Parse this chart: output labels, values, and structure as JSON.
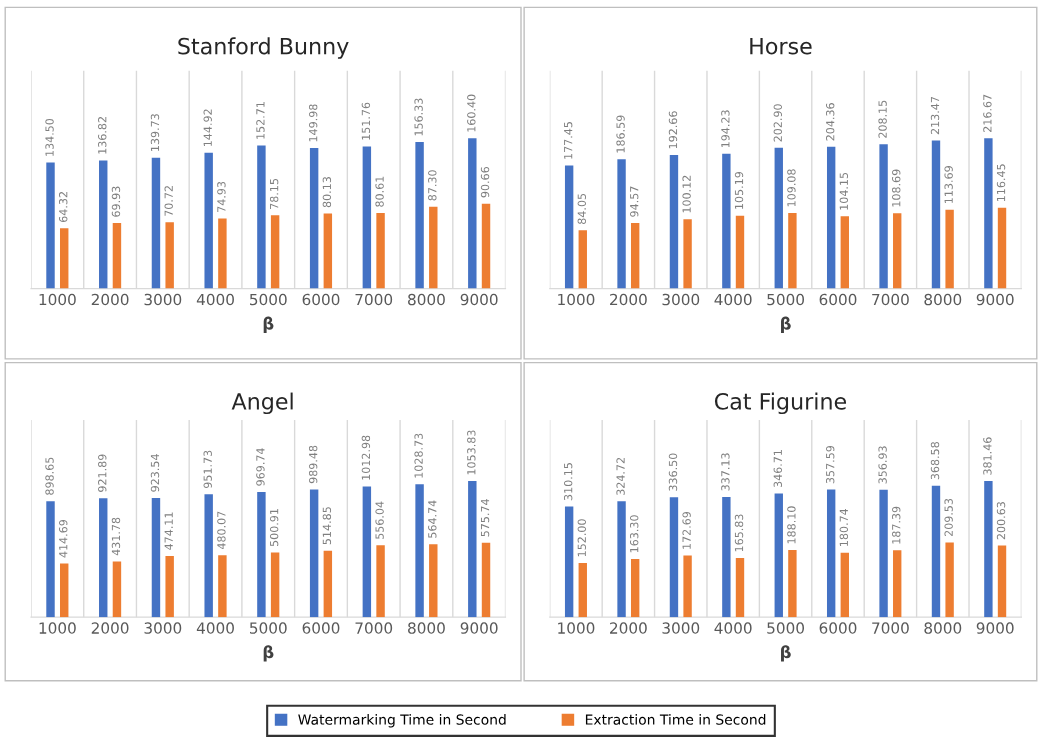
{
  "chart_data": [
    {
      "type": "bar",
      "title": "Stanford Bunny",
      "xlabel": "β",
      "categories": [
        "1000",
        "2000",
        "3000",
        "4000",
        "5000",
        "6000",
        "7000",
        "8000",
        "9000"
      ],
      "grid": "x",
      "legend": "bottom",
      "series": [
        {
          "name": "Watermarking Time in Second",
          "color": "#4472c4",
          "values": [
            134.5,
            136.82,
            139.73,
            144.92,
            152.71,
            149.98,
            151.76,
            156.33,
            160.4
          ],
          "value_labels": [
            "134.50",
            "136.82",
            "139.73",
            "144.92",
            "152.71",
            "149.98",
            "151.76",
            "156.33",
            "160.40"
          ]
        },
        {
          "name": "Extraction Time in Second",
          "color": "#ed7d31",
          "values": [
            64.32,
            69.93,
            70.72,
            74.93,
            78.15,
            80.13,
            80.61,
            87.3,
            90.66
          ],
          "value_labels": [
            "64.32",
            "69.93",
            "70.72",
            "74.93",
            "78.15",
            "80.13",
            "80.61",
            "87.30",
            "90.66"
          ]
        }
      ]
    },
    {
      "type": "bar",
      "title": "Horse",
      "xlabel": "β",
      "categories": [
        "1000",
        "2000",
        "3000",
        "4000",
        "5000",
        "6000",
        "7000",
        "8000",
        "9000"
      ],
      "grid": "x",
      "legend": "bottom",
      "series": [
        {
          "name": "Watermarking Time in Second",
          "color": "#4472c4",
          "values": [
            177.45,
            186.59,
            192.66,
            194.23,
            202.9,
            204.36,
            208.15,
            213.47,
            216.67
          ],
          "value_labels": [
            "177.45",
            "186.59",
            "192.66",
            "194.23",
            "202.90",
            "204.36",
            "208.15",
            "213.47",
            "216.67"
          ]
        },
        {
          "name": "Extraction Time in Second",
          "color": "#ed7d31",
          "values": [
            84.05,
            94.57,
            100.12,
            105.19,
            109.08,
            104.15,
            108.69,
            113.69,
            116.45
          ],
          "value_labels": [
            "84.05",
            "94.57",
            "100.12",
            "105.19",
            "109.08",
            "104.15",
            "108.69",
            "113.69",
            "116.45"
          ]
        }
      ]
    },
    {
      "type": "bar",
      "title": "Angel",
      "xlabel": "β",
      "categories": [
        "1000",
        "2000",
        "3000",
        "4000",
        "5000",
        "6000",
        "7000",
        "8000",
        "9000"
      ],
      "grid": "x",
      "legend": "bottom",
      "series": [
        {
          "name": "Watermarking Time in Second",
          "color": "#4472c4",
          "values": [
            898.65,
            921.89,
            923.54,
            951.73,
            969.74,
            989.48,
            1012.98,
            1028.73,
            1053.83
          ],
          "value_labels": [
            "898.65",
            "921.89",
            "923.54",
            "951.73",
            "969.74",
            "989.48",
            "1012.98",
            "1028.73",
            "1053.83"
          ]
        },
        {
          "name": "Extraction Time in Second",
          "color": "#ed7d31",
          "values": [
            414.69,
            431.78,
            474.11,
            480.07,
            500.91,
            514.85,
            556.04,
            564.74,
            575.74
          ],
          "value_labels": [
            "414.69",
            "431.78",
            "474.11",
            "480.07",
            "500.91",
            "514.85",
            "556.04",
            "564.74",
            "575.74"
          ]
        }
      ]
    },
    {
      "type": "bar",
      "title": "Cat Figurine",
      "xlabel": "β",
      "categories": [
        "1000",
        "2000",
        "3000",
        "4000",
        "5000",
        "6000",
        "7000",
        "8000",
        "9000"
      ],
      "grid": "x",
      "legend": "bottom",
      "series": [
        {
          "name": "Watermarking Time in Second",
          "color": "#4472c4",
          "values": [
            310.15,
            324.72,
            336.5,
            337.13,
            346.71,
            357.59,
            356.93,
            368.58,
            381.46
          ],
          "value_labels": [
            "310.15",
            "324.72",
            "336.50",
            "337.13",
            "346.71",
            "357.59",
            "356.93",
            "368.58",
            "381.46"
          ]
        },
        {
          "name": "Extraction Time in Second",
          "color": "#ed7d31",
          "values": [
            152.0,
            163.3,
            172.69,
            165.83,
            188.1,
            180.74,
            187.39,
            209.53,
            200.63
          ],
          "value_labels": [
            "152.00",
            "163.30",
            "172.69",
            "165.83",
            "188.10",
            "180.74",
            "187.39",
            "209.53",
            "200.63"
          ]
        }
      ]
    }
  ]
}
